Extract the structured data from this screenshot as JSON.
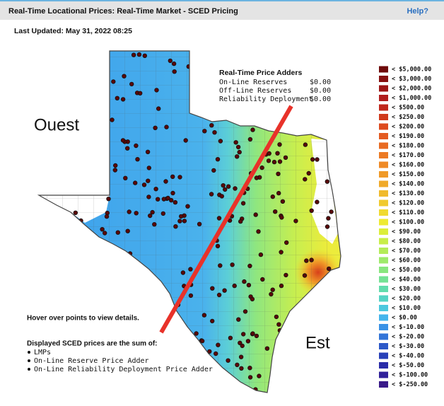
{
  "header": {
    "title": "Real-Time Locational Prices: Real-Time Market - SCED Pricing",
    "help": "Help?"
  },
  "last_updated": "Last Updated: May 31, 2022 08:25",
  "map": {
    "labels": [
      "Ouest",
      "Est"
    ]
  },
  "price_adders": {
    "title": "Real-Time Price Adders",
    "rows": [
      {
        "label": "On-Line Reserves",
        "value": "$0.00"
      },
      {
        "label": "Off-Line Reserves",
        "value": "$0.00"
      },
      {
        "label": "Reliability Deployment",
        "value": "$0.00"
      }
    ]
  },
  "notes": {
    "hover": "Hover over points to view details.",
    "displayed": "Displayed SCED prices are the sum of:",
    "items": [
      "LMPs",
      "On-Line Reserve Price Adder",
      "On-Line Reliability Deployment Price Adder"
    ]
  },
  "legend": [
    {
      "label": "< $5,000.00",
      "color": "#6e0a0a"
    },
    {
      "label": "< $3,000.00",
      "color": "#861010"
    },
    {
      "label": "< $2,000.00",
      "color": "#9c1616"
    },
    {
      "label": "< $1,000.00",
      "color": "#b01e1e"
    },
    {
      "label": "< $500.00",
      "color": "#c0281c"
    },
    {
      "label": "< $250.00",
      "color": "#d03a1c"
    },
    {
      "label": "< $200.00",
      "color": "#dd4a1e"
    },
    {
      "label": "< $190.00",
      "color": "#e35a20"
    },
    {
      "label": "< $180.00",
      "color": "#e86a22"
    },
    {
      "label": "< $170.00",
      "color": "#ec7a24"
    },
    {
      "label": "< $160.00",
      "color": "#ef8a26"
    },
    {
      "label": "< $150.00",
      "color": "#f09a28"
    },
    {
      "label": "< $140.00",
      "color": "#f0aa2a"
    },
    {
      "label": "< $130.00",
      "color": "#f0ba2c"
    },
    {
      "label": "< $120.00",
      "color": "#f0ca2e"
    },
    {
      "label": "< $110.00",
      "color": "#f0da30"
    },
    {
      "label": "< $100.00",
      "color": "#eeea32"
    },
    {
      "label": "< $90.00",
      "color": "#dcee3a"
    },
    {
      "label": "< $80.00",
      "color": "#c8ee48"
    },
    {
      "label": "< $70.00",
      "color": "#b4ec58"
    },
    {
      "label": "< $60.00",
      "color": "#9eea6a"
    },
    {
      "label": "< $50.00",
      "color": "#88e67e"
    },
    {
      "label": "< $40.00",
      "color": "#74e294"
    },
    {
      "label": "< $30.00",
      "color": "#62dcac"
    },
    {
      "label": "< $20.00",
      "color": "#56d4c4"
    },
    {
      "label": "< $10.00",
      "color": "#4cc8de"
    },
    {
      "label": "< $0.00",
      "color": "#44b4ec"
    },
    {
      "label": "< $-10.00",
      "color": "#3a92e6"
    },
    {
      "label": "< $-20.00",
      "color": "#3274d8"
    },
    {
      "label": "< $-30.00",
      "color": "#2c58c8"
    },
    {
      "label": "< $-40.00",
      "color": "#2840b8"
    },
    {
      "label": "< $-50.00",
      "color": "#2a2ca8"
    },
    {
      "label": "< $-100.00",
      "color": "#30209a"
    },
    {
      "label": "< $-250.00",
      "color": "#3a1a8a"
    }
  ]
}
